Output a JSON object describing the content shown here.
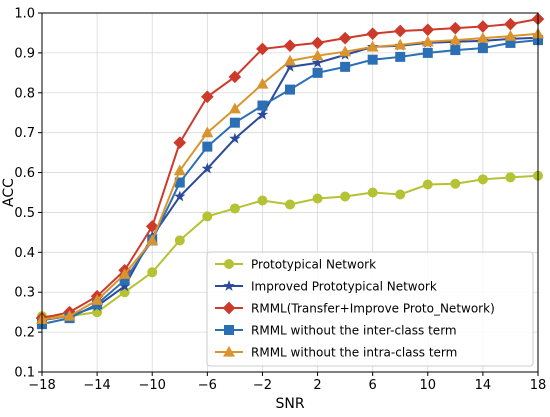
{
  "chart_data": {
    "type": "line",
    "xlabel": "SNR",
    "ylabel": "ACC",
    "xlim": [
      -18,
      18
    ],
    "ylim": [
      0.1,
      1.0
    ],
    "x_ticks": [
      -18,
      -14,
      -10,
      -6,
      -2,
      2,
      6,
      10,
      14,
      18
    ],
    "y_ticks": [
      0.1,
      0.2,
      0.3,
      0.4,
      0.5,
      0.6,
      0.7,
      0.8,
      0.9,
      1.0
    ],
    "x_tick_labels": [
      "−18",
      "−14",
      "−10",
      "−6",
      "−2",
      "2",
      "6",
      "10",
      "14",
      "18"
    ],
    "y_tick_labels": [
      "0.1",
      "0.2",
      "0.3",
      "0.4",
      "0.5",
      "0.6",
      "0.7",
      "0.8",
      "0.9",
      "1.0"
    ],
    "grid": true,
    "legend_position": "lower-right",
    "x": [
      -18,
      -16,
      -14,
      -12,
      -10,
      -8,
      -6,
      -4,
      -2,
      0,
      2,
      4,
      6,
      8,
      10,
      12,
      14,
      16,
      18
    ],
    "series": [
      {
        "name": "Prototypical Network",
        "color": "#b5c234",
        "marker": "circle",
        "values": [
          0.24,
          0.24,
          0.25,
          0.3,
          0.35,
          0.43,
          0.49,
          0.51,
          0.53,
          0.52,
          0.535,
          0.54,
          0.55,
          0.545,
          0.57,
          0.572,
          0.583,
          0.588,
          0.592
        ]
      },
      {
        "name": "Improved Prototypical Network",
        "color": "#2b4a9c",
        "marker": "star",
        "values": [
          0.23,
          0.24,
          0.265,
          0.315,
          0.44,
          0.54,
          0.61,
          0.685,
          0.745,
          0.865,
          0.875,
          0.895,
          0.915,
          0.918,
          0.925,
          0.928,
          0.93,
          0.935,
          0.938
        ]
      },
      {
        "name": "RMML(Transfer+Improve Proto_Network)",
        "color": "#cc3a2b",
        "marker": "diamond",
        "values": [
          0.235,
          0.25,
          0.29,
          0.355,
          0.465,
          0.675,
          0.79,
          0.84,
          0.91,
          0.918,
          0.925,
          0.937,
          0.948,
          0.955,
          0.958,
          0.962,
          0.966,
          0.972,
          0.985
        ]
      },
      {
        "name": "RMML without the inter-class term",
        "color": "#2b6fb5",
        "marker": "square",
        "values": [
          0.22,
          0.235,
          0.27,
          0.33,
          0.43,
          0.575,
          0.665,
          0.725,
          0.768,
          0.808,
          0.85,
          0.865,
          0.883,
          0.89,
          0.9,
          0.907,
          0.912,
          0.925,
          0.932
        ]
      },
      {
        "name": "RMML without the intra-class term",
        "color": "#d9942e",
        "marker": "triangle",
        "values": [
          0.232,
          0.24,
          0.28,
          0.345,
          0.43,
          0.605,
          0.7,
          0.76,
          0.822,
          0.88,
          0.893,
          0.903,
          0.915,
          0.92,
          0.928,
          0.932,
          0.937,
          0.942,
          0.948
        ]
      }
    ]
  }
}
